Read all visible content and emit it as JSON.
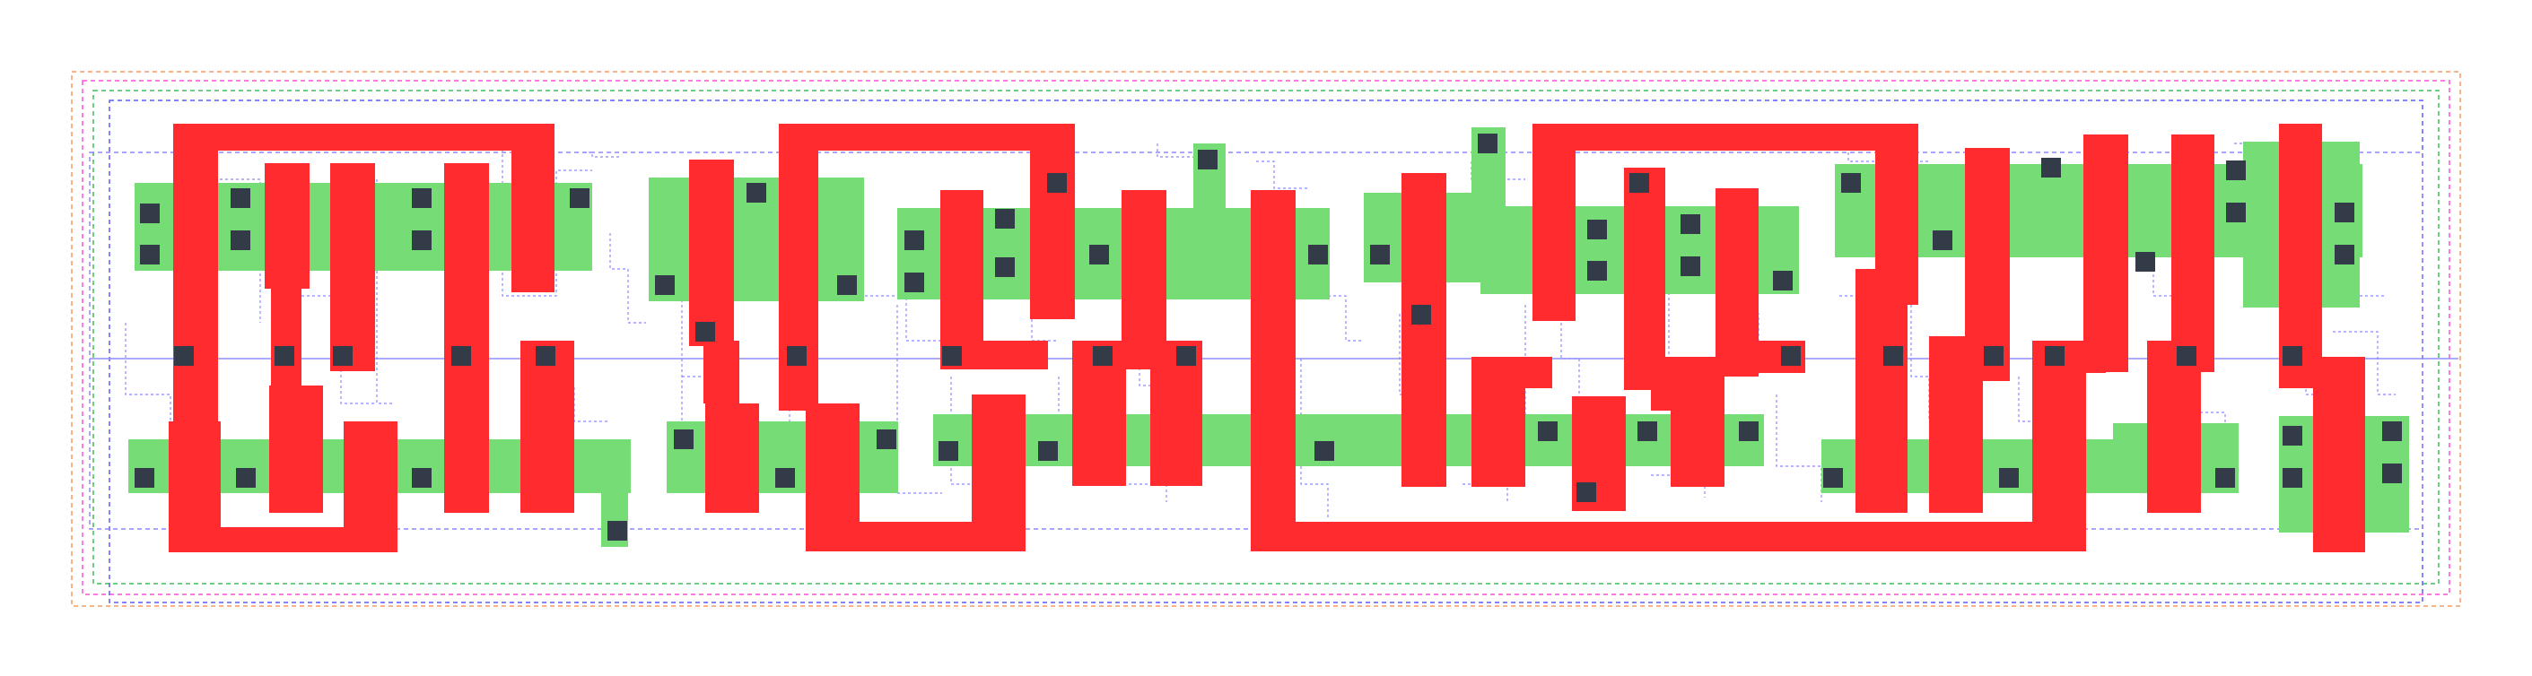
{
  "colors": {
    "background": "#ffffff",
    "active": "#76dd76",
    "poly": "#ff2b2e",
    "contact": "#343b48",
    "boundary_orange": "#f59a62",
    "boundary_pink": "#ff4fd8",
    "boundary_green": "#3fbf5a",
    "boundary_blue": "#5b5bff",
    "route_lavender": "#8c88ff",
    "rail": "#8d8dff"
  },
  "layers": [
    "active",
    "poly",
    "contact",
    "boundary",
    "route"
  ]
}
